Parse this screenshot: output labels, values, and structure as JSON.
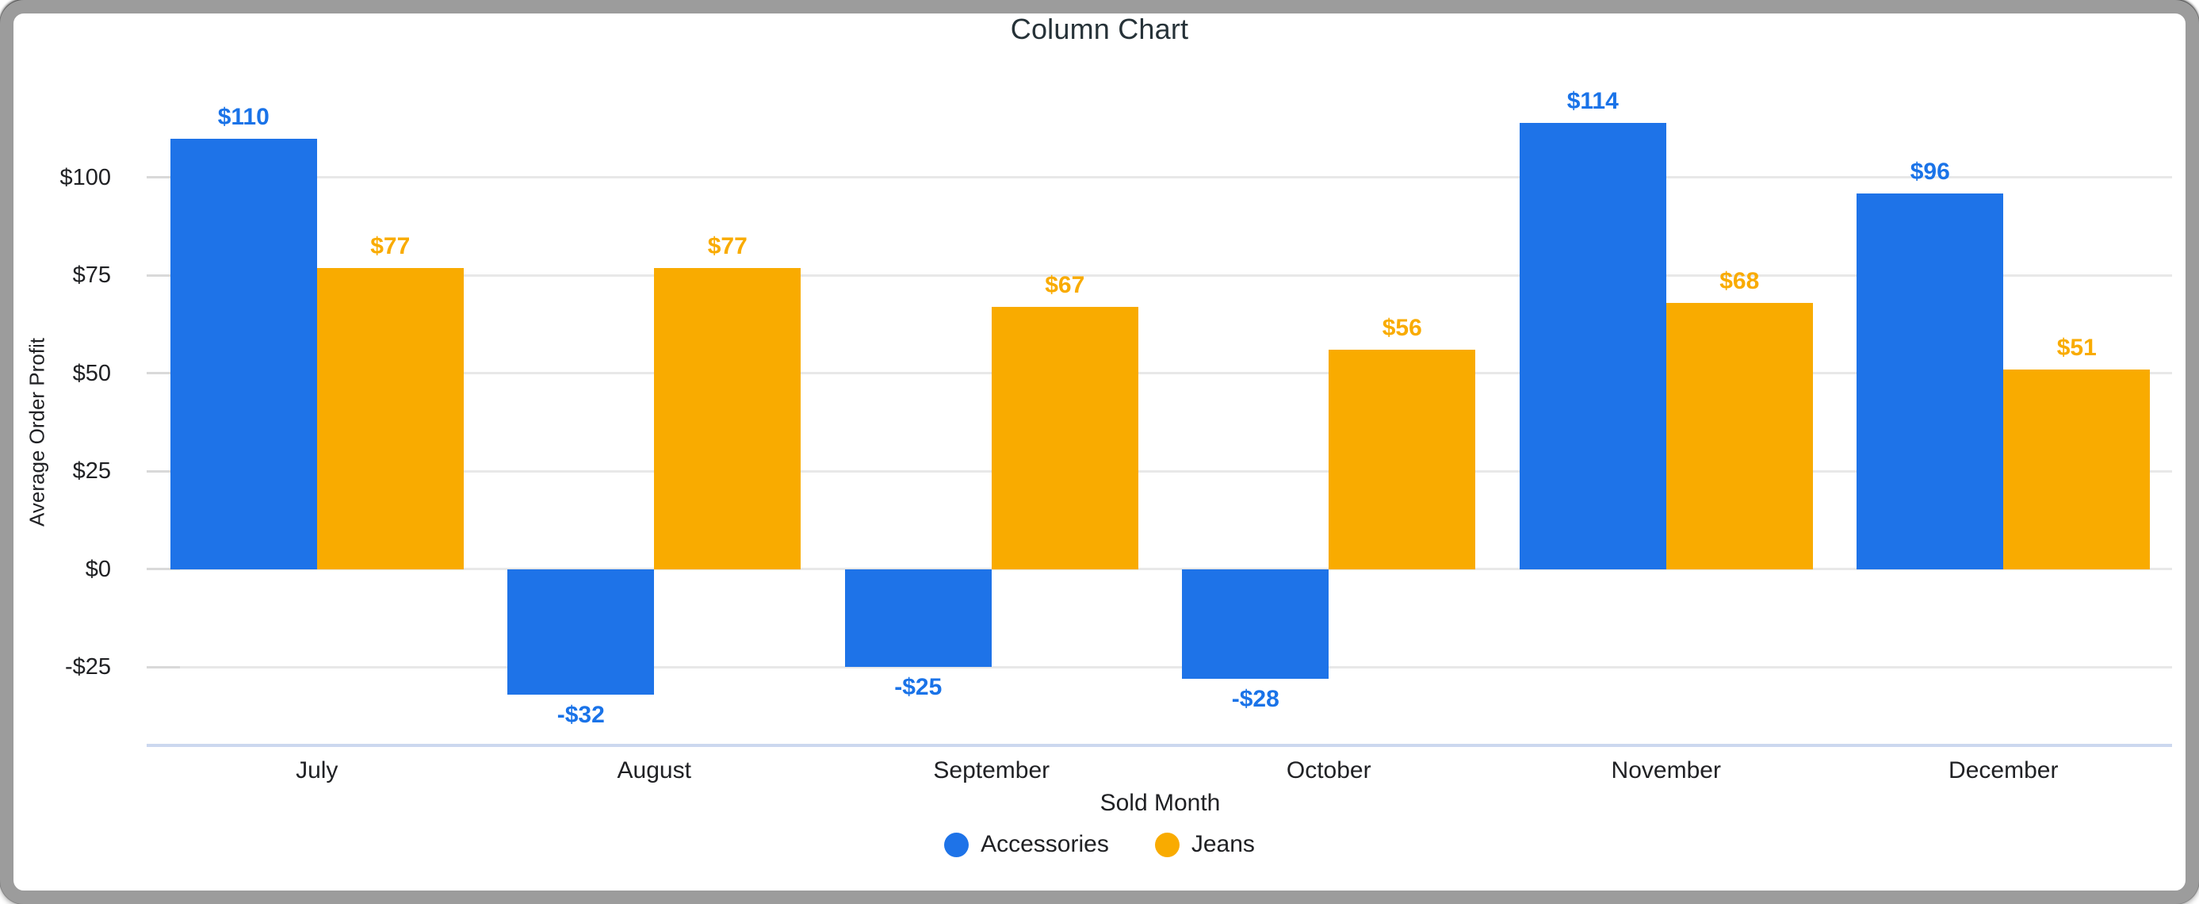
{
  "title": "Column Chart",
  "axes": {
    "y_title": "Average Order Profit",
    "x_title": "Sold Month"
  },
  "colors": {
    "accessories": "#1e73e8",
    "accessories_label": "#1a73e8",
    "jeans": "#f9ab00",
    "jeans_label": "#f9ab00",
    "gridline": "#e8e8e8",
    "baseline": "#ccd8ef",
    "text": "#202124",
    "title_text": "#263238",
    "frame": "#9c9c9c"
  },
  "chart_data": {
    "type": "bar",
    "title": "Column Chart",
    "xlabel": "Sold Month",
    "ylabel": "Average Order Profit",
    "categories": [
      "July",
      "August",
      "September",
      "October",
      "November",
      "December"
    ],
    "series": [
      {
        "name": "Accessories",
        "color": "#1e73e8",
        "label_color": "#1a73e8",
        "values": [
          110,
          -32,
          -25,
          -28,
          114,
          96
        ],
        "labels": [
          "$110",
          "-$32",
          "-$25",
          "-$28",
          "$114",
          "$96"
        ]
      },
      {
        "name": "Jeans",
        "color": "#f9ab00",
        "label_color": "#f9ab00",
        "values": [
          77,
          77,
          67,
          56,
          68,
          51
        ],
        "labels": [
          "$77",
          "$77",
          "$67",
          "$56",
          "$68",
          "$51"
        ]
      }
    ],
    "ylim": [
      -45,
      117
    ],
    "y_ticks": [
      {
        "value": 100,
        "label": "$100"
      },
      {
        "value": 75,
        "label": "$75"
      },
      {
        "value": 50,
        "label": "$50"
      },
      {
        "value": 25,
        "label": "$25"
      },
      {
        "value": 0,
        "label": "$0"
      },
      {
        "value": -25,
        "label": "-$25"
      }
    ],
    "grid": true,
    "legend_position": "bottom"
  }
}
